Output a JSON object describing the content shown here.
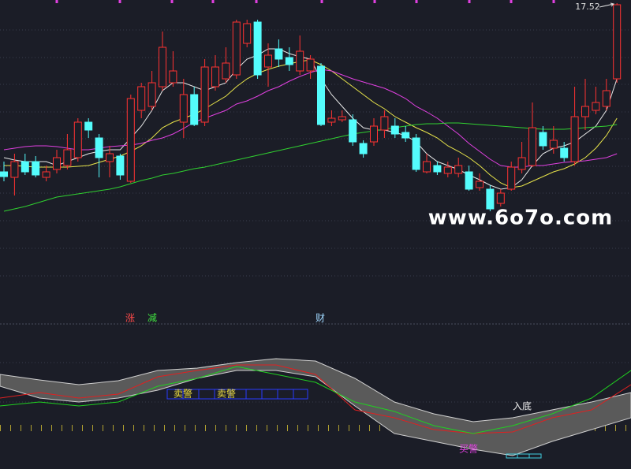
{
  "chart_data": [
    {
      "type": "candlestick",
      "up_color": "#ff3232",
      "down_color": "#54fcfc",
      "ylim": [
        11.8,
        17.56
      ],
      "open": [
        13.24,
        13.1,
        13.5,
        13.5,
        13.1,
        13.3,
        13.4,
        13.6,
        14.5,
        14.1,
        13.5,
        13.64,
        13.0,
        14.8,
        14.9,
        15.4,
        15.5,
        14.5,
        15.2,
        14.5,
        15.4,
        15.6,
        15.7,
        16.5,
        17.04,
        15.9,
        16.36,
        16.14,
        15.8,
        15.8,
        15.92,
        14.5,
        14.56,
        14.56,
        13.96,
        14.0,
        14.3,
        14.4,
        14.24,
        14.1,
        13.24,
        13.4,
        13.2,
        13.2,
        13.24,
        12.84,
        12.8,
        12.44,
        12.8,
        13.3,
        13.4,
        14.24,
        13.84,
        13.84,
        13.5,
        14.64,
        14.8,
        14.9,
        15.6
      ],
      "high": [
        13.5,
        13.7,
        13.7,
        13.64,
        13.4,
        13.8,
        14.2,
        14.6,
        14.6,
        14.2,
        13.9,
        13.7,
        15.2,
        15.5,
        15.8,
        16.8,
        16.3,
        15.6,
        15.4,
        16.1,
        16.2,
        16.4,
        17.1,
        17.1,
        17.1,
        16.5,
        16.6,
        16.4,
        16.7,
        16.2,
        16.0,
        14.8,
        14.8,
        14.7,
        14.04,
        14.6,
        14.8,
        14.6,
        14.4,
        14.2,
        13.7,
        13.5,
        13.5,
        13.6,
        13.4,
        13.2,
        12.9,
        12.8,
        13.5,
        14.0,
        15.0,
        14.4,
        14.4,
        14.0,
        15.4,
        15.6,
        15.4,
        15.6,
        17.52
      ],
      "low": [
        13.0,
        12.64,
        13.16,
        13.1,
        13.0,
        13.2,
        13.3,
        13.5,
        14.1,
        13.1,
        13.1,
        13.04,
        12.96,
        14.6,
        14.8,
        15.3,
        15.4,
        14.1,
        14.4,
        14.4,
        15.3,
        15.5,
        15.6,
        16.4,
        15.6,
        15.4,
        15.9,
        15.8,
        15.7,
        15.6,
        14.4,
        14.4,
        14.5,
        13.9,
        13.6,
        13.9,
        14.1,
        14.1,
        14.0,
        13.24,
        13.2,
        13.16,
        13.1,
        13.1,
        12.76,
        12.76,
        12.24,
        12.36,
        12.76,
        13.2,
        13.36,
        13.8,
        13.7,
        13.5,
        13.4,
        14.3,
        14.7,
        14.8,
        15.5
      ],
      "close": [
        13.12,
        13.5,
        13.24,
        13.16,
        13.24,
        13.6,
        13.8,
        14.5,
        14.3,
        13.6,
        13.7,
        13.16,
        15.1,
        15.4,
        15.5,
        16.4,
        15.8,
        15.2,
        14.44,
        15.9,
        15.9,
        16.0,
        17.04,
        17.0,
        15.7,
        16.2,
        16.1,
        15.96,
        16.3,
        16.1,
        14.44,
        14.6,
        14.64,
        14.0,
        13.7,
        14.4,
        14.64,
        14.2,
        14.1,
        13.3,
        13.5,
        13.24,
        13.36,
        13.4,
        12.8,
        13.0,
        12.3,
        12.7,
        13.36,
        13.6,
        14.36,
        13.9,
        14.04,
        13.6,
        14.64,
        14.9,
        15.0,
        15.3,
        17.48
      ],
      "series": [
        {
          "color": "#e8e8e8",
          "values": [
            13.6,
            13.54,
            13.5,
            13.5,
            13.5,
            13.4,
            13.5,
            13.6,
            13.7,
            13.76,
            13.8,
            13.8,
            14.1,
            14.4,
            14.8,
            15.3,
            15.5,
            15.5,
            15.4,
            15.3,
            15.4,
            15.5,
            15.84,
            16.1,
            16.2,
            16.36,
            16.36,
            16.24,
            16.16,
            16.1,
            15.6,
            15.2,
            14.9,
            14.6,
            14.36,
            14.3,
            14.3,
            14.24,
            14.16,
            14.0,
            13.7,
            13.5,
            13.4,
            13.3,
            13.16,
            13.04,
            12.9,
            12.8,
            12.84,
            13.04,
            13.4,
            13.7,
            13.84,
            13.9,
            14.0,
            14.2,
            14.4,
            14.8,
            15.6
          ]
        },
        {
          "color": "#e8e44a",
          "values": [
            13.4,
            13.4,
            13.38,
            13.36,
            13.36,
            13.36,
            13.36,
            13.38,
            13.4,
            13.48,
            13.56,
            13.64,
            13.76,
            13.9,
            14.1,
            14.36,
            14.5,
            14.6,
            14.7,
            14.84,
            15.0,
            15.16,
            15.4,
            15.6,
            15.74,
            15.84,
            15.92,
            15.98,
            16.04,
            16.08,
            15.96,
            15.8,
            15.6,
            15.4,
            15.2,
            15.0,
            14.84,
            14.64,
            14.5,
            14.36,
            14.24,
            14.1,
            13.9,
            13.76,
            13.6,
            13.4,
            13.16,
            12.96,
            12.84,
            12.88,
            13.0,
            13.12,
            13.24,
            13.32,
            13.44,
            13.6,
            13.84,
            14.16,
            14.6
          ]
        },
        {
          "color": "#e040e0",
          "values": [
            13.8,
            13.84,
            13.88,
            13.9,
            13.9,
            13.88,
            13.84,
            13.8,
            13.8,
            13.84,
            13.88,
            13.9,
            13.92,
            13.96,
            14.04,
            14.1,
            14.2,
            14.34,
            14.5,
            14.6,
            14.7,
            14.8,
            14.96,
            15.04,
            15.16,
            15.3,
            15.4,
            15.54,
            15.66,
            15.76,
            15.84,
            15.8,
            15.7,
            15.6,
            15.52,
            15.44,
            15.36,
            15.24,
            15.1,
            14.9,
            14.76,
            14.6,
            14.4,
            14.2,
            13.96,
            13.76,
            13.56,
            13.4,
            13.36,
            13.36,
            13.4,
            13.4,
            13.44,
            13.48,
            13.5,
            13.52,
            13.56,
            13.6,
            13.7
          ]
        },
        {
          "color": "#30d030",
          "values": [
            12.24,
            12.3,
            12.36,
            12.44,
            12.52,
            12.6,
            12.64,
            12.68,
            12.72,
            12.76,
            12.8,
            12.86,
            12.94,
            13.02,
            13.08,
            13.16,
            13.2,
            13.26,
            13.32,
            13.36,
            13.42,
            13.48,
            13.54,
            13.6,
            13.66,
            13.72,
            13.78,
            13.84,
            13.9,
            13.96,
            14.02,
            14.08,
            14.14,
            14.2,
            14.24,
            14.28,
            14.32,
            14.36,
            14.4,
            14.44,
            14.46,
            14.46,
            14.48,
            14.48,
            14.46,
            14.44,
            14.42,
            14.4,
            14.38,
            14.36,
            14.34,
            14.32,
            14.32,
            14.32,
            14.34,
            14.36,
            14.38,
            14.4,
            14.44
          ]
        }
      ],
      "annotations": [
        "涨",
        "减",
        "财"
      ]
    },
    {
      "type": "band-line",
      "ylim": [
        0,
        185
      ],
      "categories": [
        null,
        null,
        null,
        null,
        null,
        null,
        null,
        null,
        null,
        null,
        null,
        null,
        null,
        null,
        null,
        null,
        null
      ],
      "band_color": "#5a5a5a",
      "band_upper": [
        120,
        113,
        107,
        112,
        125,
        128,
        135,
        140,
        137,
        115,
        85,
        70,
        60,
        65,
        75,
        85,
        97
      ],
      "band_lower": [
        105,
        90,
        85,
        90,
        100,
        115,
        125,
        125,
        117,
        80,
        45,
        35,
        25,
        17,
        35,
        50,
        65
      ],
      "series": [
        {
          "color": "#e02020",
          "values": [
            90,
            97,
            90,
            95,
            117,
            125,
            132,
            132,
            120,
            75,
            65,
            50,
            45,
            47,
            65,
            75,
            107
          ]
        },
        {
          "color": "#20d020",
          "values": [
            80,
            85,
            80,
            85,
            105,
            115,
            130,
            120,
            110,
            85,
            73,
            55,
            45,
            55,
            70,
            90,
            125
          ]
        }
      ],
      "annotations": [
        "卖警",
        "卖警",
        "入底",
        "买警"
      ]
    }
  ],
  "watermark": "www.6o7o.com"
}
